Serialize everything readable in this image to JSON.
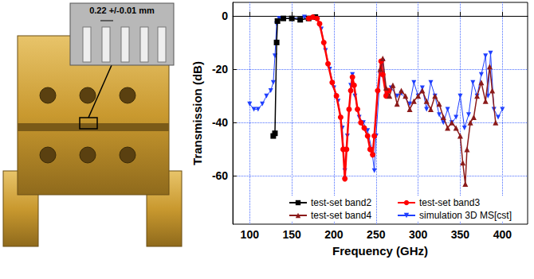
{
  "photo": {
    "inset_label": "0.22 +/-0.01 mm"
  },
  "chart_data": {
    "type": "line",
    "x_label": "Frequency (GHz)",
    "y_label": "Transmission (dB)",
    "xlim": [
      80,
      430
    ],
    "xticks": [
      100,
      150,
      200,
      250,
      300,
      350,
      400
    ],
    "ylim": [
      -78,
      5
    ],
    "yticks": [
      -60,
      -40,
      -20,
      0
    ],
    "grid": true,
    "legend": "bottom",
    "series": [
      {
        "name": "test-set band2",
        "color": "#000000",
        "marker": "square",
        "line_style": "solid",
        "x": [
          128,
          130,
          132,
          133,
          140,
          150,
          160,
          170,
          178
        ],
        "values": [
          -45,
          -44,
          -10,
          -2,
          -1,
          -1,
          -1.5,
          -1,
          -0.5
        ]
      },
      {
        "name": "test-set band3",
        "color": "#ff0000",
        "marker": "circle",
        "line_style": "solid",
        "x": [
          170,
          175,
          180,
          183,
          188,
          193,
          198,
          203,
          208,
          211,
          213,
          215,
          218,
          220,
          222,
          224,
          228,
          232,
          236,
          240,
          243,
          246,
          248,
          252,
          256,
          258,
          262,
          265
        ],
        "values": [
          -1,
          -0.5,
          -1,
          -3,
          -10,
          -18,
          -25,
          -30,
          -38,
          -50,
          -61,
          -50,
          -35,
          -28,
          -23,
          -26,
          -35,
          -40,
          -42,
          -45,
          -50,
          -52,
          -45,
          -28,
          -17,
          -22,
          -30,
          -28
        ]
      },
      {
        "name": "test-set band4",
        "color": "#8b1a1a",
        "marker": "triangle",
        "line_style": "solid",
        "x": [
          255,
          258,
          262,
          266,
          270,
          275,
          280,
          285,
          290,
          295,
          300,
          305,
          310,
          315,
          320,
          325,
          330,
          335,
          340,
          345,
          350,
          353,
          356,
          358,
          362,
          366,
          370,
          375,
          380,
          385,
          388,
          392
        ],
        "values": [
          -20,
          -16,
          -27,
          -30,
          -26,
          -33,
          -28,
          -30,
          -35,
          -32,
          -30,
          -28,
          -32,
          -35,
          -30,
          -33,
          -38,
          -42,
          -40,
          -42,
          -45,
          -55,
          -63,
          -50,
          -40,
          -38,
          -30,
          -25,
          -32,
          -19,
          -28,
          -40
        ]
      },
      {
        "name": "simulation 3D MS[cst]",
        "color": "#1f3fff",
        "marker": "triangle-down",
        "line_style": "solid",
        "x": [
          100,
          105,
          110,
          115,
          120,
          125,
          128,
          130,
          132,
          135,
          150,
          165,
          180,
          185,
          190,
          195,
          200,
          205,
          210,
          213,
          216,
          220,
          222,
          225,
          230,
          235,
          240,
          245,
          248,
          250,
          255,
          258,
          262,
          268,
          275,
          280,
          290,
          295,
          300,
          305,
          310,
          315,
          320,
          325,
          330,
          335,
          340,
          345,
          350,
          355,
          360,
          365,
          370,
          375,
          380,
          383,
          386,
          390,
          395,
          400
        ],
        "values": [
          -33,
          -35,
          -35,
          -33,
          -30,
          -28,
          -25,
          -15,
          -3,
          -1,
          -1,
          -0.5,
          -1,
          -5,
          -13,
          -20,
          -27,
          -32,
          -42,
          -58,
          -45,
          -26,
          -22,
          -30,
          -38,
          -40,
          -43,
          -50,
          -58,
          -45,
          -22,
          -17,
          -30,
          -27,
          -30,
          -29,
          -33,
          -25,
          -30,
          -27,
          -35,
          -25,
          -30,
          -37,
          -40,
          -35,
          -40,
          -38,
          -30,
          -42,
          -37,
          -25,
          -30,
          -22,
          -15,
          -30,
          -14,
          -35,
          -38,
          -35
        ]
      }
    ]
  }
}
